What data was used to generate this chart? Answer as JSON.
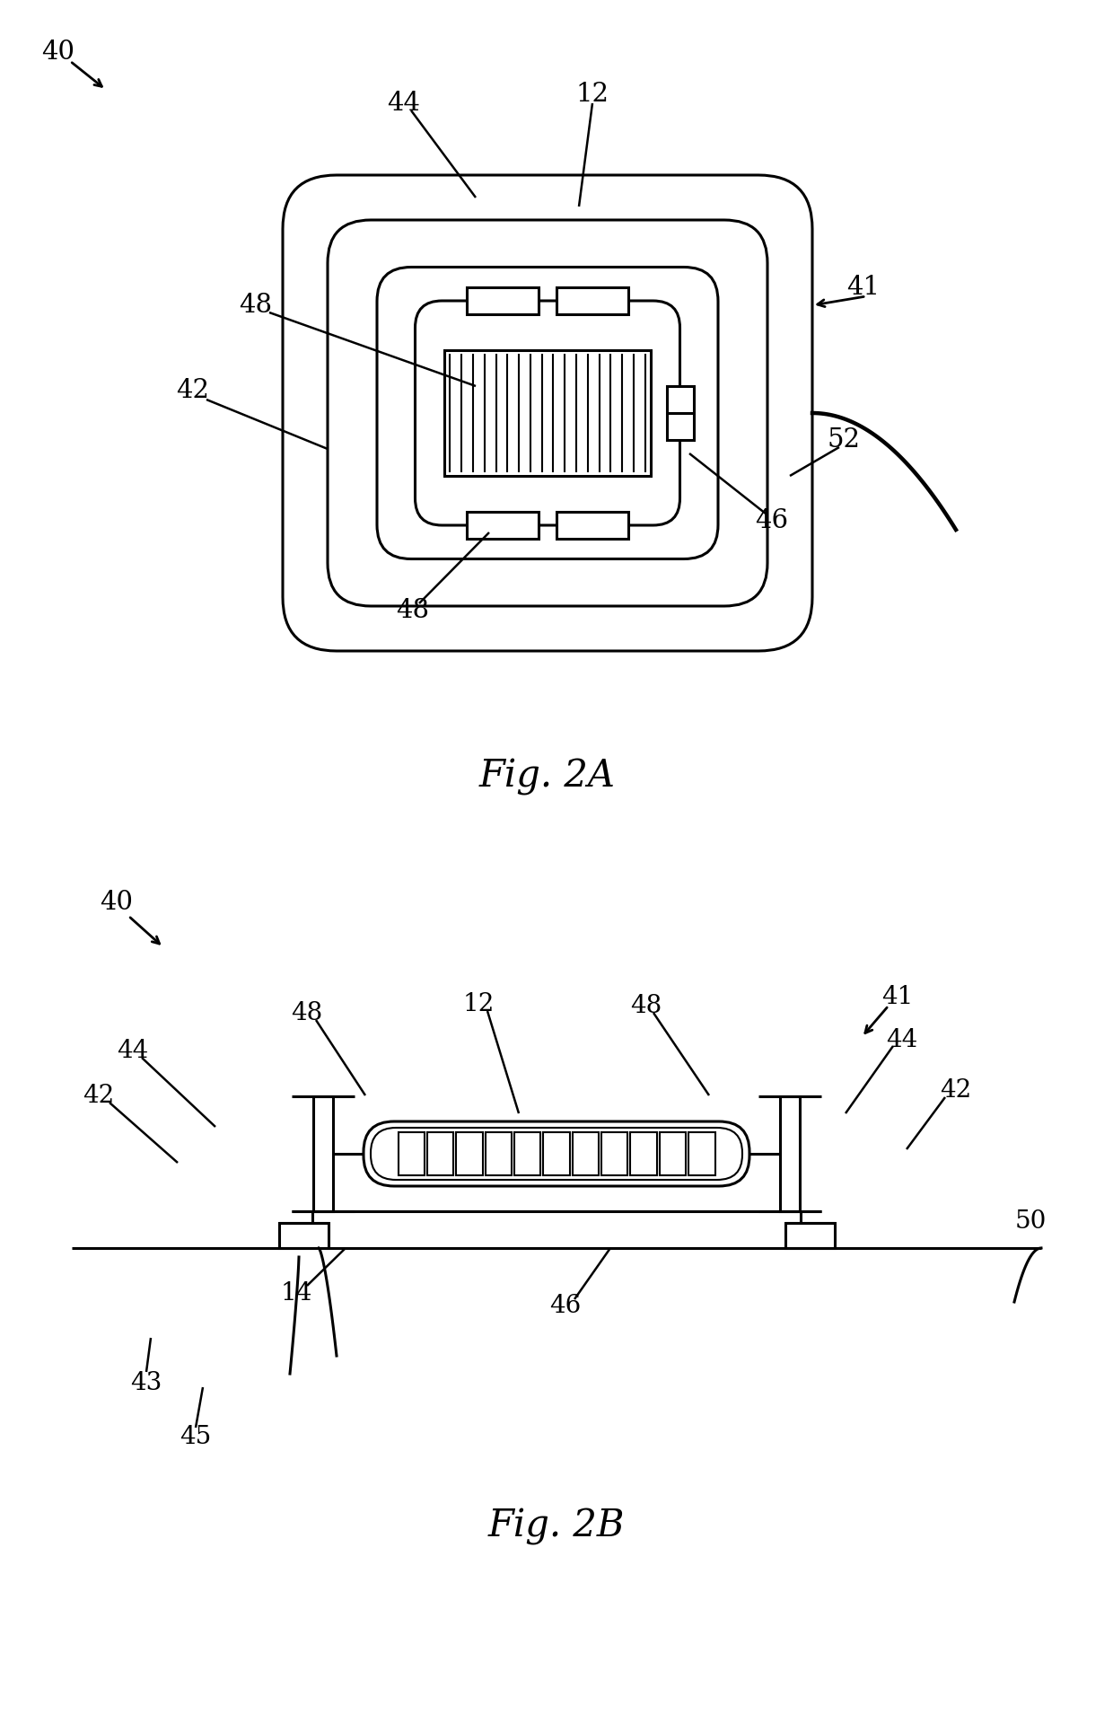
{
  "fig_size": [
    12.4,
    19.29
  ],
  "dpi": 100,
  "bg_color": "#ffffff",
  "line_color": "#000000",
  "fig2a_label": "Fig. 2A",
  "fig2b_label": "Fig. 2B",
  "lw_main": 2.2,
  "lw_thick": 3.2,
  "lw_thin": 1.5
}
